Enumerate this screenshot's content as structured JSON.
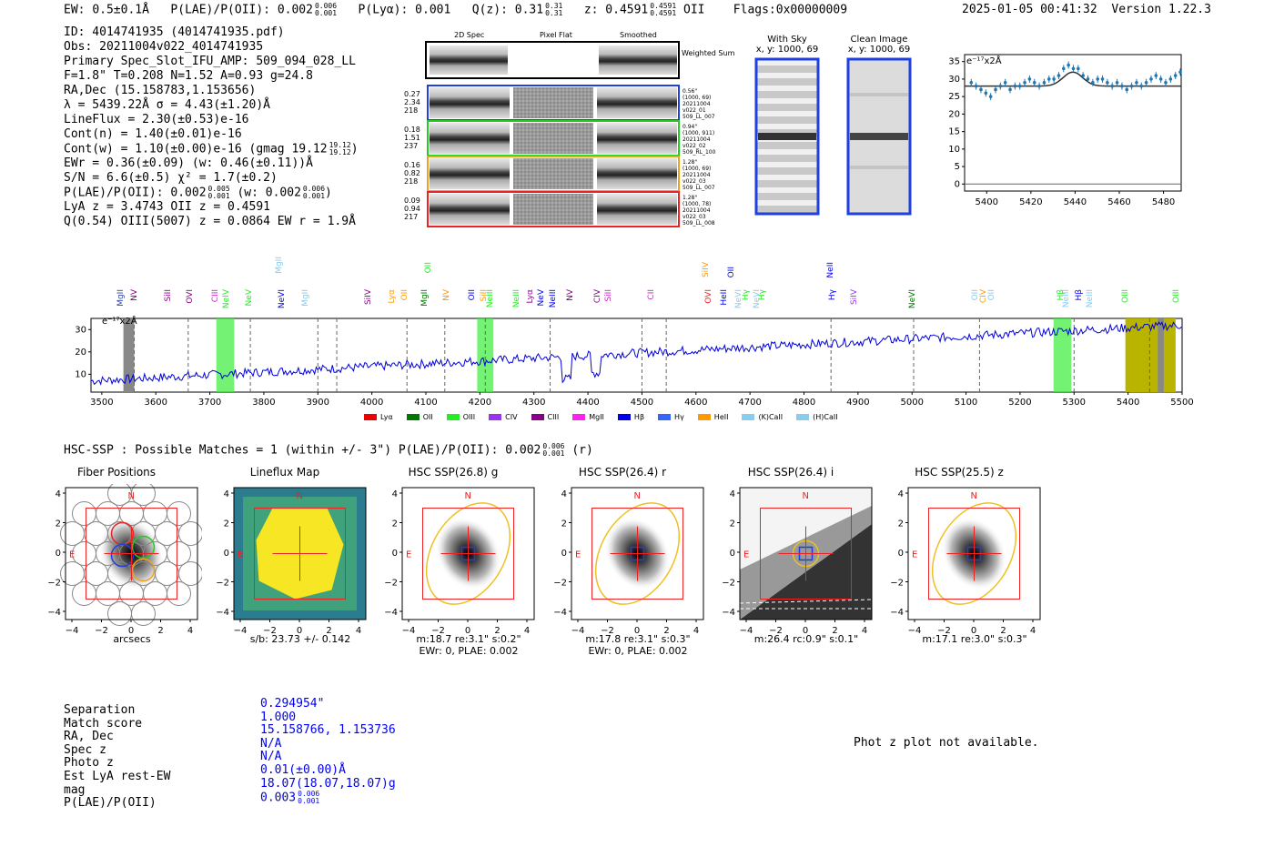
{
  "header": {
    "ew_label": "EW:",
    "ew_value": "0.5±0.1Å",
    "plae_label": "P(LAE)/P(OII):",
    "plae_value": "0.002",
    "plae_hi": "0.006",
    "plae_lo": "0.001",
    "plya": "P(Lyα): 0.001",
    "qz_label": "Q(z): 0.31",
    "qz_hi": "0.31",
    "qz_lo": "0.31",
    "z_label": "z: 0.4591",
    "z_hi": "0.4591",
    "z_lo": "0.4591",
    "z_line": "OII",
    "flags": "Flags:0x00000009",
    "datetime": "2025-01-05 00:41:32",
    "version": "Version 1.22.3"
  },
  "info": {
    "id": "ID: 4014741935 (4014741935.pdf)",
    "obs": "Obs: 20211004v022_4014741935",
    "primary": "Primary Spec_Slot_IFU_AMP: 509_094_028_LL",
    "fiber": "F=1.8\"  T=0.208  N=1.52  A=0.93  g=24.8",
    "radec": "RA,Dec (15.158783,1.153656)",
    "lambda": "λ = 5439.22Å  σ = 4.43(±1.20)Å",
    "lineflux": "LineFlux = 2.30(±0.53)e-16",
    "contn": "Cont(n) = 1.40(±0.01)e-16",
    "contw": "Cont(w) = 1.10(±0.00)e-16 (gmag 19.12",
    "contw_hi": "19.12",
    "contw_lo": "19.12",
    "ewr": "EWr = 0.36(±0.09) (w: 0.46(±0.11))Å",
    "sn": "S/N = 6.6(±0.5)  χ² = 1.7(±0.2)",
    "plae": "P(LAE)/P(OII): 0.002",
    "plae_hi": "0.005",
    "plae_lo": "0.001",
    "plae_w": "(w: 0.002",
    "plae_w_hi": "0.006",
    "plae_w_lo": "0.001",
    "lya": "LyA z = 3.4743  OII z = 0.4591",
    "q": "Q(0.54) OIII(5007) z = 0.0864  EW r = 1.9Å"
  },
  "spec2d": {
    "col1": "2D Spec",
    "col2": "Pixel Flat",
    "col3": "Smoothed",
    "weighted": "Weighted Sum",
    "rows": [
      {
        "a": "0.27",
        "b": "2.34",
        "c": "218",
        "color": "#1f3fe0",
        "s1": "0.56\"",
        "s2": "(1000, 69)",
        "s3": "20211004",
        "s4": "v022_01",
        "s5": "509_LL_007"
      },
      {
        "a": "0.18",
        "b": "1.51",
        "c": "237",
        "color": "#22cc22",
        "s1": "0.94\"",
        "s2": "(1000, 911)",
        "s3": "20211004",
        "s4": "v022_02",
        "s5": "509_RL_100"
      },
      {
        "a": "0.16",
        "b": "0.82",
        "c": "218",
        "color": "#f0a020",
        "s1": "1.28\"",
        "s2": "(1000, 69)",
        "s3": "20211004",
        "s4": "v022_03",
        "s5": "509_LL_007"
      },
      {
        "a": "0.09",
        "b": "0.94",
        "c": "217",
        "color": "#ee2222",
        "s1": "1.28\"",
        "s2": "(1000, 78)",
        "s3": "20211004",
        "s4": "v022_03",
        "s5": "509_LL_008"
      }
    ]
  },
  "sky": {
    "title1": "With Sky",
    "sub1": "x, y: 1000, 69",
    "title2": "Clean Image",
    "sub2": "x, y: 1000, 69"
  },
  "zoom_plot": {
    "unit": "e⁻¹⁷x2Å",
    "yticks": [
      "35",
      "30",
      "25",
      "20",
      "15",
      "10",
      "5",
      "0"
    ],
    "xticks": [
      "5400",
      "5420",
      "5440",
      "5460",
      "5480"
    ]
  },
  "full_spec": {
    "unit": "e⁻¹⁷x2Å",
    "yticks": [
      "30",
      "20",
      "10"
    ],
    "xticks": [
      "3500",
      "3600",
      "3700",
      "3800",
      "3900",
      "4000",
      "4100",
      "4200",
      "4300",
      "4400",
      "4500",
      "4600",
      "4700",
      "4800",
      "4900",
      "5000",
      "5100",
      "5200",
      "5300",
      "5400",
      "5500"
    ],
    "legend": [
      {
        "name": "Lyα",
        "color": "#ee0000"
      },
      {
        "name": "OII",
        "color": "#007700"
      },
      {
        "name": "OIII",
        "color": "#22ee22"
      },
      {
        "name": "CIV",
        "color": "#9933ee"
      },
      {
        "name": "CIII",
        "color": "#880088"
      },
      {
        "name": "MgII",
        "color": "#ff22ee"
      },
      {
        "name": "Hβ",
        "color": "#0000ee"
      },
      {
        "name": "Hγ",
        "color": "#3366ff"
      },
      {
        "name": "HeII",
        "color": "#ff9900"
      },
      {
        "name": "(K)CaII",
        "color": "#88ccee"
      },
      {
        "name": "(H)CaII",
        "color": "#88ccee"
      }
    ],
    "lines": [
      {
        "name": "MgII",
        "color": "#3344aa",
        "w": 3538
      },
      {
        "name": "NV",
        "color": "#880088",
        "w": 3562
      },
      {
        "name": "SiII",
        "color": "#880088",
        "w": 3625
      },
      {
        "name": "OVI",
        "color": "#880088",
        "w": 3665
      },
      {
        "name": "CIII",
        "color": "#cc22cc",
        "w": 3712
      },
      {
        "name": "NeIV",
        "color": "#22ee22",
        "w": 3732
      },
      {
        "name": "NeV",
        "color": "#22ee22",
        "w": 3775
      },
      {
        "name": "MgII",
        "color": "#88ccee",
        "w": 3830
      },
      {
        "name": "NeVI",
        "color": "#0000ee",
        "w": 3835
      },
      {
        "name": "MgII",
        "color": "#88ccee",
        "w": 3880
      },
      {
        "name": "SiIV",
        "color": "#880088",
        "w": 3995
      },
      {
        "name": "Lyα",
        "color": "#ff9900",
        "w": 4040
      },
      {
        "name": "OII",
        "color": "#ff9900",
        "w": 4063
      },
      {
        "name": "OII",
        "color": "#22ee22",
        "w": 4106
      },
      {
        "name": "MgII",
        "color": "#007700",
        "w": 4100
      },
      {
        "name": "NV",
        "color": "#ff9900",
        "w": 4140
      },
      {
        "name": "OII",
        "color": "#0000ee",
        "w": 4187
      },
      {
        "name": "SiII",
        "color": "#ff9900",
        "w": 4210
      },
      {
        "name": "NeIII",
        "color": "#22ee22",
        "w": 4222
      },
      {
        "name": "NeIII",
        "color": "#22ee22",
        "w": 4270
      },
      {
        "name": "Lyα",
        "color": "#880088",
        "w": 4295
      },
      {
        "name": "NeV",
        "color": "#0000ee",
        "w": 4315
      },
      {
        "name": "NeIII",
        "color": "#0000ee",
        "w": 4338
      },
      {
        "name": "NV",
        "color": "#880088",
        "w": 4370
      },
      {
        "name": "CIV",
        "color": "#880088",
        "w": 4420
      },
      {
        "name": "SiII",
        "color": "#cc22cc",
        "w": 4440
      },
      {
        "name": "CII",
        "color": "#cc22cc",
        "w": 4520
      },
      {
        "name": "SiIV",
        "color": "#ff9900",
        "w": 4620
      },
      {
        "name": "OVI",
        "color": "#ee2222",
        "w": 4625
      },
      {
        "name": "HeII",
        "color": "#0000ee",
        "w": 4655
      },
      {
        "name": "OII",
        "color": "#0000ee",
        "w": 4667
      },
      {
        "name": "NeVI",
        "color": "#88ccee",
        "w": 4682
      },
      {
        "name": "Hγ",
        "color": "#22ee22",
        "w": 4695
      },
      {
        "name": "NeVI",
        "color": "#88ccee",
        "w": 4715
      },
      {
        "name": "Hγ",
        "color": "#22ee22",
        "w": 4725
      },
      {
        "name": "NeII",
        "color": "#0000ee",
        "w": 4852
      },
      {
        "name": "Hγ",
        "color": "#0000ee",
        "w": 4855
      },
      {
        "name": "SiIV",
        "color": "#9933ee",
        "w": 4895
      },
      {
        "name": "NeVI",
        "color": "#007700",
        "w": 5003
      },
      {
        "name": "OII",
        "color": "#88ccee",
        "w": 5120
      },
      {
        "name": "CIV",
        "color": "#ff9900",
        "w": 5135
      },
      {
        "name": "OII",
        "color": "#88ccee",
        "w": 5150
      },
      {
        "name": "Hβ",
        "color": "#22ee22",
        "w": 5278
      },
      {
        "name": "NeIII",
        "color": "#88ccee",
        "w": 5288
      },
      {
        "name": "Hβ",
        "color": "#0000ee",
        "w": 5312
      },
      {
        "name": "NeIII",
        "color": "#88ccee",
        "w": 5332
      },
      {
        "name": "OIII",
        "color": "#22ee22",
        "w": 5398
      },
      {
        "name": "OIII",
        "color": "#22ee22",
        "w": 5491
      }
    ]
  },
  "hsc": {
    "summary": "HSC-SSP : Possible Matches = 1 (within +/- 3\")  P(LAE)/P(OII): 0.002",
    "summary_hi": "0.006",
    "summary_lo": "0.001",
    "summary_tail": "(r)",
    "panels": [
      {
        "title": "Fiber Positions",
        "cap1": "arcsecs",
        "cap2": ""
      },
      {
        "title": "Lineflux Map",
        "cap1": "s/b: 23.73 +/- 0.142",
        "cap2": ""
      },
      {
        "title": "HSC SSP(26.8) g",
        "cap1": "m:18.7  re:3.1\"  s:0.2\"",
        "cap2": "EWr: 0, PLAE: 0.002"
      },
      {
        "title": "HSC SSP(26.4) r",
        "cap1": "m:17.8  re:3.1\"  s:0.3\"",
        "cap2": "EWr: 0, PLAE: 0.002"
      },
      {
        "title": "HSC SSP(26.4) i",
        "cap1": "m:26.4 rc:0.9\"  s:0.1\"",
        "cap2": ""
      },
      {
        "title": "HSC SSP(25.5) z",
        "cap1": "m:17.1  re:3.0\"  s:0.3\"",
        "cap2": ""
      }
    ],
    "axis_ticks": [
      "4",
      "2",
      "0",
      "−2",
      "−4"
    ],
    "xaxis_ticks": [
      "−4",
      "−2",
      "0",
      "2",
      "4"
    ],
    "n_label": "N",
    "e_label": "E"
  },
  "match": {
    "labels": [
      "Separation",
      "Match score",
      "RA, Dec",
      "Spec z",
      "Photo z",
      "Est LyA rest-EW",
      "mag",
      "P(LAE)/P(OII)"
    ],
    "values": [
      "0.294954\"",
      "1.000",
      "15.158766, 1.153736",
      "N/A",
      "N/A",
      "0.01(±0.00)Å",
      "18.07(18.07,18.07)g",
      "0.003"
    ],
    "plae_hi": "0.006",
    "plae_lo": "0.001"
  },
  "photz": {
    "text": "Phot z plot not available."
  }
}
